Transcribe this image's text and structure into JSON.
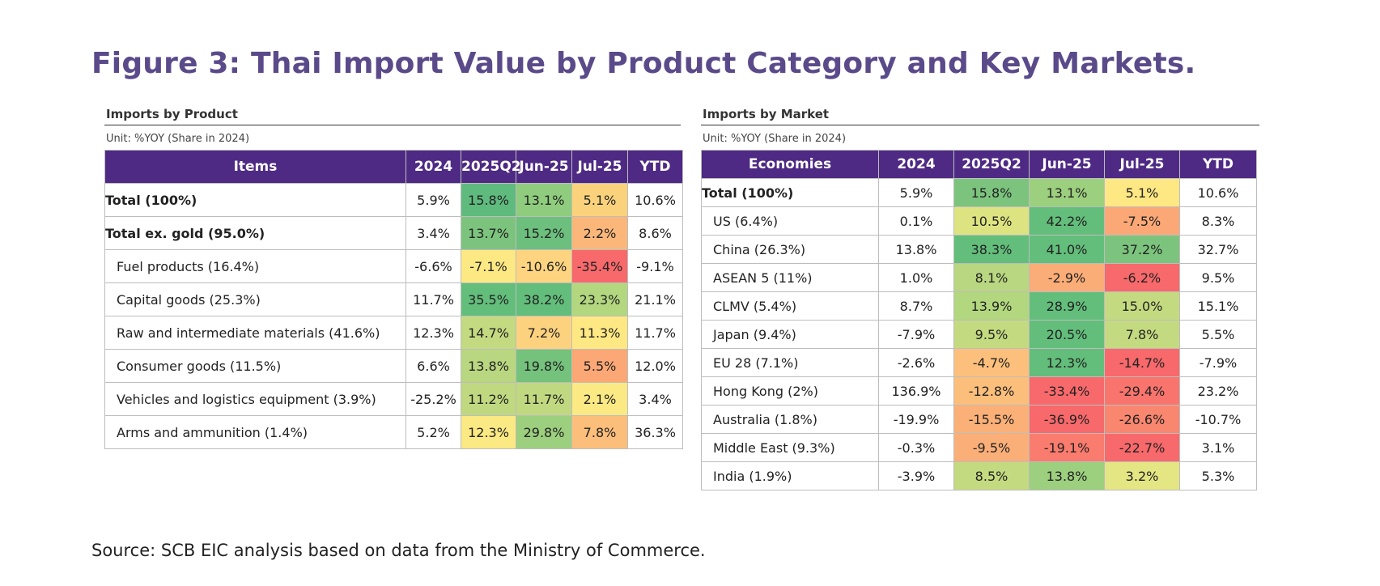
{
  "title": "Figure 3: Thai Import Value by Product Category and Key Markets.",
  "source": "Source: SCB EIC analysis based on data from the Ministry of Commerce.",
  "product": {
    "title": "Imports by Product",
    "unit": "Unit: %YOY (Share in 2024)",
    "headers": [
      "Items",
      "2024",
      "2025Q2",
      "Jun-25",
      "Jul-25",
      "YTD"
    ],
    "rows": [
      {
        "label": "Total (100%)",
        "style": "bold",
        "cells": [
          {
            "v": "5.9%",
            "c": "#ffffff"
          },
          {
            "v": "15.8%",
            "c": "#5fba7d"
          },
          {
            "v": "13.1%",
            "c": "#8fcc7e"
          },
          {
            "v": "5.1%",
            "c": "#fbd27c"
          },
          {
            "v": "10.6%",
            "c": "#ffffff"
          }
        ]
      },
      {
        "label": "Total ex. gold (95.0%)",
        "style": "bold",
        "cells": [
          {
            "v": "3.4%",
            "c": "#ffffff"
          },
          {
            "v": "13.7%",
            "c": "#7cc47e"
          },
          {
            "v": "15.2%",
            "c": "#6cbf7c"
          },
          {
            "v": "2.2%",
            "c": "#fbb77a"
          },
          {
            "v": "8.6%",
            "c": "#ffffff"
          }
        ]
      },
      {
        "label": "Fuel products (16.4%)",
        "style": "indent",
        "cells": [
          {
            "v": "-6.6%",
            "c": "#ffffff"
          },
          {
            "v": "-7.1%",
            "c": "#fde984"
          },
          {
            "v": "-10.6%",
            "c": "#fed480"
          },
          {
            "v": "-35.4%",
            "c": "#f8696b"
          },
          {
            "v": "-9.1%",
            "c": "#ffffff"
          }
        ]
      },
      {
        "label": "Capital goods (25.3%)",
        "style": "indent",
        "cells": [
          {
            "v": "11.7%",
            "c": "#ffffff"
          },
          {
            "v": "35.5%",
            "c": "#63be7b"
          },
          {
            "v": "38.2%",
            "c": "#63be7b"
          },
          {
            "v": "23.3%",
            "c": "#b2d77f"
          },
          {
            "v": "21.1%",
            "c": "#ffffff"
          }
        ]
      },
      {
        "label": "Raw and intermediate materials (41.6%)",
        "style": "indent",
        "cells": [
          {
            "v": "12.3%",
            "c": "#ffffff"
          },
          {
            "v": "14.7%",
            "c": "#c4da80"
          },
          {
            "v": "7.2%",
            "c": "#fdd27f"
          },
          {
            "v": "11.3%",
            "c": "#fee883"
          },
          {
            "v": "11.7%",
            "c": "#ffffff"
          }
        ]
      },
      {
        "label": "Consumer goods (11.5%)",
        "style": "indent",
        "cells": [
          {
            "v": "6.6%",
            "c": "#ffffff"
          },
          {
            "v": "13.8%",
            "c": "#b9d780"
          },
          {
            "v": "19.8%",
            "c": "#74c27c"
          },
          {
            "v": "5.5%",
            "c": "#fba876"
          },
          {
            "v": "12.0%",
            "c": "#ffffff"
          }
        ]
      },
      {
        "label": "Vehicles and logistics equipment (3.9%)",
        "style": "indent",
        "cells": [
          {
            "v": "-25.2%",
            "c": "#ffffff"
          },
          {
            "v": "11.2%",
            "c": "#c0d980"
          },
          {
            "v": "11.7%",
            "c": "#c0d980"
          },
          {
            "v": "2.1%",
            "c": "#fbe983"
          },
          {
            "v": "3.4%",
            "c": "#ffffff"
          }
        ]
      },
      {
        "label": "Arms and ammunition (1.4%)",
        "style": "indent",
        "cells": [
          {
            "v": "5.2%",
            "c": "#ffffff"
          },
          {
            "v": "12.3%",
            "c": "#fbe983"
          },
          {
            "v": "29.8%",
            "c": "#9ccf7e"
          },
          {
            "v": "7.8%",
            "c": "#fcbe7b"
          },
          {
            "v": "36.3%",
            "c": "#ffffff"
          }
        ]
      }
    ]
  },
  "market": {
    "title": "Imports by Market",
    "unit": "Unit: %YOY (Share in 2024)",
    "headers": [
      "Economies",
      "2024",
      "2025Q2",
      "Jun-25",
      "Jul-25",
      "YTD"
    ],
    "rows": [
      {
        "label": "Total (100%)",
        "style": "bold",
        "cells": [
          {
            "v": "5.9%",
            "c": "#ffffff"
          },
          {
            "v": "15.8%",
            "c": "#7cc47e"
          },
          {
            "v": "13.1%",
            "c": "#9ccf7e"
          },
          {
            "v": "5.1%",
            "c": "#fee883"
          },
          {
            "v": "10.6%",
            "c": "#ffffff"
          }
        ]
      },
      {
        "label": "US (6.4%)",
        "style": "indent",
        "cells": [
          {
            "v": "0.1%",
            "c": "#ffffff"
          },
          {
            "v": "10.5%",
            "c": "#dde381"
          },
          {
            "v": "42.2%",
            "c": "#63be7b"
          },
          {
            "v": "-7.5%",
            "c": "#fba876"
          },
          {
            "v": "8.3%",
            "c": "#ffffff"
          }
        ]
      },
      {
        "label": "China (26.3%)",
        "style": "indent",
        "cells": [
          {
            "v": "13.8%",
            "c": "#ffffff"
          },
          {
            "v": "38.3%",
            "c": "#63be7b"
          },
          {
            "v": "41.0%",
            "c": "#63be7b"
          },
          {
            "v": "37.2%",
            "c": "#7cc47e"
          },
          {
            "v": "32.7%",
            "c": "#ffffff"
          }
        ]
      },
      {
        "label": "ASEAN 5 (11%)",
        "style": "indent",
        "cells": [
          {
            "v": "1.0%",
            "c": "#ffffff"
          },
          {
            "v": "8.1%",
            "c": "#b9d780"
          },
          {
            "v": "-2.9%",
            "c": "#fbad78"
          },
          {
            "v": "-6.2%",
            "c": "#f8696b"
          },
          {
            "v": "9.5%",
            "c": "#ffffff"
          }
        ]
      },
      {
        "label": "CLMV (5.4%)",
        "style": "indent",
        "cells": [
          {
            "v": "8.7%",
            "c": "#ffffff"
          },
          {
            "v": "13.9%",
            "c": "#b2d77f"
          },
          {
            "v": "28.9%",
            "c": "#63be7b"
          },
          {
            "v": "15.0%",
            "c": "#c4da80"
          },
          {
            "v": "15.1%",
            "c": "#ffffff"
          }
        ]
      },
      {
        "label": "Japan (9.4%)",
        "style": "indent",
        "cells": [
          {
            "v": "-7.9%",
            "c": "#ffffff"
          },
          {
            "v": "9.5%",
            "c": "#c4da80"
          },
          {
            "v": "20.5%",
            "c": "#63be7b"
          },
          {
            "v": "7.8%",
            "c": "#c4da80"
          },
          {
            "v": "5.5%",
            "c": "#ffffff"
          }
        ]
      },
      {
        "label": "EU 28 (7.1%)",
        "style": "indent",
        "cells": [
          {
            "v": "-2.6%",
            "c": "#ffffff"
          },
          {
            "v": "-4.7%",
            "c": "#fcc07c"
          },
          {
            "v": "12.3%",
            "c": "#63be7b"
          },
          {
            "v": "-14.7%",
            "c": "#f8696b"
          },
          {
            "v": "-7.9%",
            "c": "#ffffff"
          }
        ]
      },
      {
        "label": "Hong Kong (2%)",
        "style": "indent",
        "cells": [
          {
            "v": "136.9%",
            "c": "#ffffff"
          },
          {
            "v": "-12.8%",
            "c": "#fcbe7b"
          },
          {
            "v": "-33.4%",
            "c": "#f8696b"
          },
          {
            "v": "-29.4%",
            "c": "#f9746d"
          },
          {
            "v": "23.2%",
            "c": "#ffffff"
          }
        ]
      },
      {
        "label": "Australia (1.8%)",
        "style": "indent",
        "cells": [
          {
            "v": "-19.9%",
            "c": "#ffffff"
          },
          {
            "v": "-15.5%",
            "c": "#fbb077"
          },
          {
            "v": "-36.9%",
            "c": "#f8696b"
          },
          {
            "v": "-26.6%",
            "c": "#f9866f"
          },
          {
            "v": "-10.7%",
            "c": "#ffffff"
          }
        ]
      },
      {
        "label": "Middle East (9.3%)",
        "style": "indent",
        "cells": [
          {
            "v": "-0.3%",
            "c": "#ffffff"
          },
          {
            "v": "-9.5%",
            "c": "#fbaf78"
          },
          {
            "v": "-19.1%",
            "c": "#f97c6e"
          },
          {
            "v": "-22.7%",
            "c": "#f8696b"
          },
          {
            "v": "3.1%",
            "c": "#ffffff"
          }
        ]
      },
      {
        "label": "India (1.9%)",
        "style": "indent",
        "cells": [
          {
            "v": "-3.9%",
            "c": "#ffffff"
          },
          {
            "v": "8.5%",
            "c": "#c4da80"
          },
          {
            "v": "13.8%",
            "c": "#9ccf7e"
          },
          {
            "v": "3.2%",
            "c": "#e4e583"
          },
          {
            "v": "5.3%",
            "c": "#ffffff"
          }
        ]
      }
    ]
  }
}
